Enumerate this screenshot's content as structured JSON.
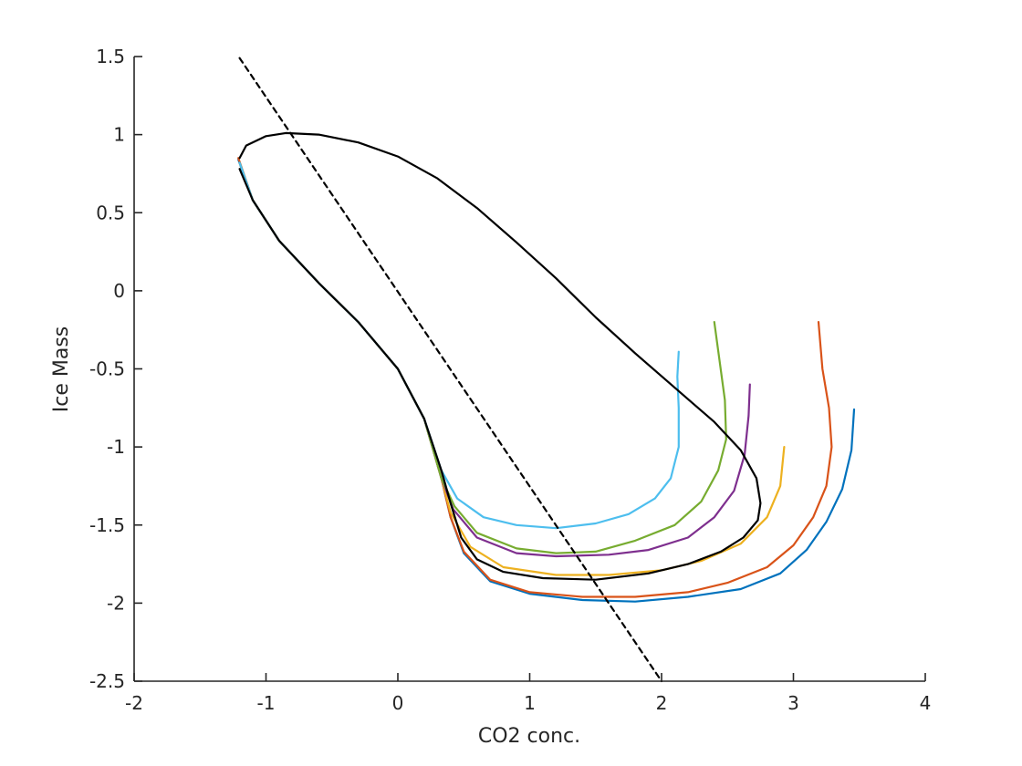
{
  "chart_data": {
    "type": "line",
    "title": "",
    "xlabel": "CO2 conc.",
    "ylabel": "Ice Mass",
    "xlim": [
      -2,
      4
    ],
    "ylim": [
      -2.5,
      1.5
    ],
    "xticks": [
      -2,
      -1,
      0,
      1,
      2,
      3,
      4
    ],
    "yticks": [
      -2.5,
      -2,
      -1.5,
      -1,
      -0.5,
      0,
      0.5,
      1,
      1.5
    ],
    "xtick_labels": [
      "-2",
      "-1",
      "0",
      "1",
      "2",
      "3",
      "4"
    ],
    "ytick_labels": [
      "-2.5",
      "-2",
      "-1.5",
      "-1",
      "-0.5",
      "0",
      "0.5",
      "1",
      "1.5"
    ],
    "grid": false,
    "legend": "none",
    "series": [
      {
        "color": "#0072BD",
        "style": "solid",
        "points": [
          [
            -1.21,
            0.84
          ],
          [
            -1.1,
            0.58
          ],
          [
            -0.9,
            0.32
          ],
          [
            -0.6,
            0.05
          ],
          [
            -0.3,
            -0.2
          ],
          [
            0,
            -0.5
          ],
          [
            0.2,
            -0.82
          ],
          [
            0.33,
            -1.2
          ],
          [
            0.4,
            -1.45
          ],
          [
            0.5,
            -1.68
          ],
          [
            0.7,
            -1.86
          ],
          [
            1.0,
            -1.94
          ],
          [
            1.4,
            -1.98
          ],
          [
            1.8,
            -1.99
          ],
          [
            2.2,
            -1.96
          ],
          [
            2.6,
            -1.91
          ],
          [
            2.9,
            -1.81
          ],
          [
            3.1,
            -1.66
          ],
          [
            3.25,
            -1.48
          ],
          [
            3.37,
            -1.27
          ],
          [
            3.44,
            -1.02
          ],
          [
            3.46,
            -0.76
          ]
        ]
      },
      {
        "color": "#D95319",
        "style": "solid",
        "points": [
          [
            -1.21,
            0.85
          ],
          [
            -1.1,
            0.58
          ],
          [
            -0.9,
            0.32
          ],
          [
            -0.6,
            0.05
          ],
          [
            -0.3,
            -0.2
          ],
          [
            0,
            -0.5
          ],
          [
            0.2,
            -0.82
          ],
          [
            0.33,
            -1.2
          ],
          [
            0.4,
            -1.45
          ],
          [
            0.5,
            -1.67
          ],
          [
            0.7,
            -1.85
          ],
          [
            1.0,
            -1.93
          ],
          [
            1.4,
            -1.96
          ],
          [
            1.8,
            -1.96
          ],
          [
            2.2,
            -1.93
          ],
          [
            2.5,
            -1.87
          ],
          [
            2.8,
            -1.77
          ],
          [
            3.0,
            -1.63
          ],
          [
            3.15,
            -1.45
          ],
          [
            3.25,
            -1.25
          ],
          [
            3.29,
            -1.0
          ],
          [
            3.27,
            -0.75
          ],
          [
            3.22,
            -0.5
          ],
          [
            3.19,
            -0.2
          ]
        ]
      },
      {
        "color": "#EDB120",
        "style": "solid",
        "points": [
          [
            -1.2,
            0.82
          ],
          [
            -1.1,
            0.58
          ],
          [
            -0.9,
            0.32
          ],
          [
            -0.6,
            0.05
          ],
          [
            -0.3,
            -0.2
          ],
          [
            0,
            -0.5
          ],
          [
            0.2,
            -0.82
          ],
          [
            0.33,
            -1.2
          ],
          [
            0.4,
            -1.42
          ],
          [
            0.55,
            -1.64
          ],
          [
            0.8,
            -1.77
          ],
          [
            1.2,
            -1.82
          ],
          [
            1.6,
            -1.82
          ],
          [
            2.0,
            -1.79
          ],
          [
            2.3,
            -1.73
          ],
          [
            2.6,
            -1.62
          ],
          [
            2.8,
            -1.45
          ],
          [
            2.9,
            -1.25
          ],
          [
            2.93,
            -1.0
          ]
        ]
      },
      {
        "color": "#7E2F8E",
        "style": "solid",
        "points": [
          [
            -1.2,
            0.82
          ],
          [
            -1.1,
            0.58
          ],
          [
            -0.9,
            0.32
          ],
          [
            -0.6,
            0.05
          ],
          [
            -0.3,
            -0.2
          ],
          [
            0,
            -0.5
          ],
          [
            0.2,
            -0.82
          ],
          [
            0.33,
            -1.2
          ],
          [
            0.42,
            -1.4
          ],
          [
            0.6,
            -1.58
          ],
          [
            0.9,
            -1.68
          ],
          [
            1.2,
            -1.7
          ],
          [
            1.6,
            -1.69
          ],
          [
            1.9,
            -1.66
          ],
          [
            2.2,
            -1.58
          ],
          [
            2.4,
            -1.45
          ],
          [
            2.55,
            -1.28
          ],
          [
            2.63,
            -1.05
          ],
          [
            2.66,
            -0.8
          ],
          [
            2.67,
            -0.6
          ]
        ]
      },
      {
        "color": "#77AC30",
        "style": "solid",
        "points": [
          [
            -1.2,
            0.82
          ],
          [
            -1.1,
            0.58
          ],
          [
            -0.9,
            0.32
          ],
          [
            -0.6,
            0.05
          ],
          [
            -0.3,
            -0.2
          ],
          [
            0,
            -0.5
          ],
          [
            0.2,
            -0.82
          ],
          [
            0.33,
            -1.2
          ],
          [
            0.43,
            -1.38
          ],
          [
            0.6,
            -1.55
          ],
          [
            0.9,
            -1.65
          ],
          [
            1.2,
            -1.68
          ],
          [
            1.5,
            -1.67
          ],
          [
            1.8,
            -1.6
          ],
          [
            2.1,
            -1.5
          ],
          [
            2.3,
            -1.35
          ],
          [
            2.43,
            -1.15
          ],
          [
            2.49,
            -0.95
          ],
          [
            2.48,
            -0.7
          ],
          [
            2.44,
            -0.45
          ],
          [
            2.4,
            -0.2
          ]
        ]
      },
      {
        "color": "#4DBEEE",
        "style": "solid",
        "points": [
          [
            -1.2,
            0.82
          ],
          [
            -1.1,
            0.58
          ],
          [
            -0.9,
            0.32
          ],
          [
            -0.6,
            0.05
          ],
          [
            -0.3,
            -0.2
          ],
          [
            0,
            -0.5
          ],
          [
            0.2,
            -0.82
          ],
          [
            0.33,
            -1.15
          ],
          [
            0.45,
            -1.33
          ],
          [
            0.65,
            -1.45
          ],
          [
            0.9,
            -1.5
          ],
          [
            1.2,
            -1.52
          ],
          [
            1.5,
            -1.49
          ],
          [
            1.75,
            -1.43
          ],
          [
            1.95,
            -1.33
          ],
          [
            2.07,
            -1.2
          ],
          [
            2.13,
            -1.0
          ],
          [
            2.13,
            -0.75
          ],
          [
            2.12,
            -0.55
          ],
          [
            2.13,
            -0.39
          ]
        ]
      },
      {
        "color": "#000000",
        "style": "solid",
        "points": [
          [
            -1.2,
            0.85
          ],
          [
            -1.15,
            0.93
          ],
          [
            -1.0,
            0.99
          ],
          [
            -0.85,
            1.01
          ],
          [
            -0.6,
            1.0
          ],
          [
            -0.3,
            0.95
          ],
          [
            0,
            0.86
          ],
          [
            0.3,
            0.72
          ],
          [
            0.6,
            0.53
          ],
          [
            0.9,
            0.31
          ],
          [
            1.2,
            0.08
          ],
          [
            1.5,
            -0.17
          ],
          [
            1.8,
            -0.4
          ],
          [
            2.1,
            -0.62
          ],
          [
            2.4,
            -0.84
          ],
          [
            2.6,
            -1.02
          ],
          [
            2.72,
            -1.2
          ],
          [
            2.75,
            -1.36
          ],
          [
            2.73,
            -1.47
          ],
          [
            2.62,
            -1.58
          ],
          [
            2.45,
            -1.67
          ],
          [
            2.2,
            -1.75
          ],
          [
            1.9,
            -1.81
          ],
          [
            1.5,
            -1.85
          ],
          [
            1.1,
            -1.84
          ],
          [
            0.8,
            -1.8
          ],
          [
            0.6,
            -1.72
          ],
          [
            0.48,
            -1.58
          ],
          [
            0.4,
            -1.36
          ],
          [
            0.33,
            -1.15
          ],
          [
            0.2,
            -0.82
          ],
          [
            0,
            -0.5
          ],
          [
            -0.3,
            -0.2
          ],
          [
            -0.6,
            0.05
          ],
          [
            -0.9,
            0.32
          ],
          [
            -1.1,
            0.58
          ],
          [
            -1.2,
            0.78
          ]
        ]
      },
      {
        "color": "#000000",
        "style": "dashed",
        "points": [
          [
            -1.2,
            1.49
          ],
          [
            2.0,
            -2.5
          ]
        ]
      }
    ]
  }
}
